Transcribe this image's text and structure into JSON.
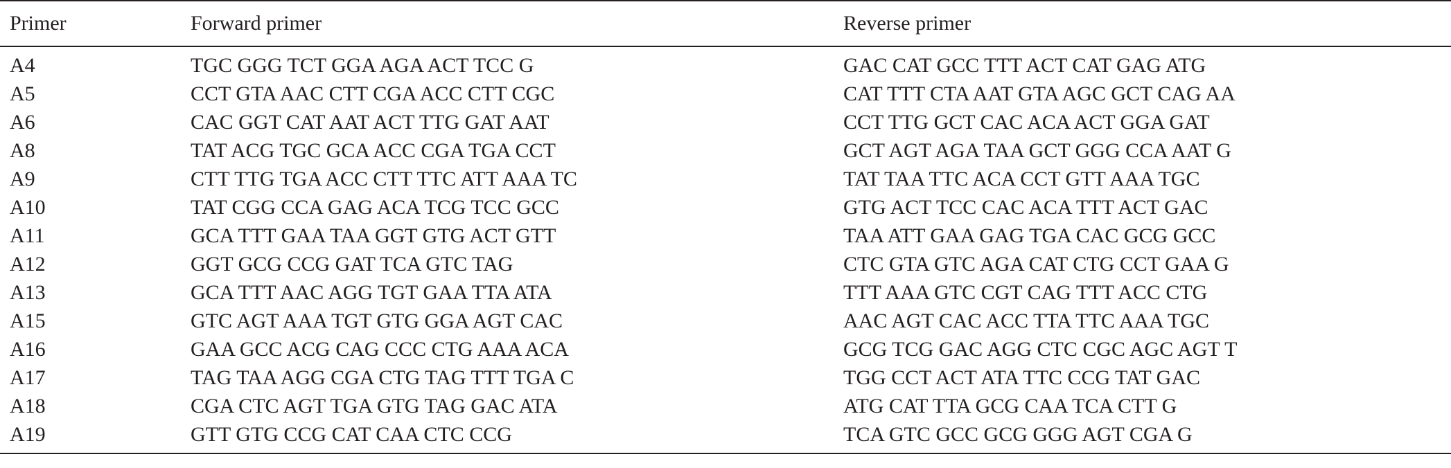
{
  "table": {
    "headers": [
      "Primer",
      "Forward primer",
      "Reverse primer"
    ],
    "rows": [
      [
        "A4",
        "TGC GGG TCT GGA AGA ACT TCC G",
        "GAC CAT GCC TTT ACT CAT GAG ATG"
      ],
      [
        "A5",
        "CCT GTA AAC CTT CGA ACC CTT CGC",
        "CAT TTT CTA AAT GTA AGC GCT CAG AA"
      ],
      [
        "A6",
        "CAC GGT CAT AAT ACT TTG GAT AAT",
        "CCT TTG GCT CAC ACA ACT GGA GAT"
      ],
      [
        "A8",
        "TAT ACG TGC GCA ACC CGA TGA CCT",
        "GCT AGT AGA TAA GCT GGG CCA AAT G"
      ],
      [
        "A9",
        "CTT TTG TGA ACC CTT TTC ATT AAA TC",
        "TAT TAA TTC ACA CCT GTT AAA TGC"
      ],
      [
        "A10",
        "TAT CGG CCA GAG ACA TCG TCC GCC",
        "GTG ACT TCC CAC ACA TTT ACT GAC"
      ],
      [
        "A11",
        "GCA TTT GAA TAA GGT GTG ACT GTT",
        "TAA ATT GAA GAG TGA CAC GCG GCC"
      ],
      [
        "A12",
        "GGT GCG CCG GAT TCA GTC TAG",
        "CTC GTA GTC AGA CAT CTG CCT GAA G"
      ],
      [
        "A13",
        "GCA TTT AAC AGG TGT GAA TTA ATA",
        "TTT AAA GTC CGT CAG TTT ACC CTG"
      ],
      [
        "A15",
        "GTC AGT AAA TGT GTG GGA AGT CAC",
        "AAC AGT CAC ACC TTA TTC AAA TGC"
      ],
      [
        "A16",
        "GAA GCC ACG CAG CCC CTG AAA ACA",
        "GCG TCG GAC AGG CTC CGC AGC AGT T"
      ],
      [
        "A17",
        "TAG TAA AGG CGA CTG TAG TTT TGA C",
        "TGG CCT ACT ATA TTC CCG TAT GAC"
      ],
      [
        "A18",
        "CGA CTC AGT TGA GTG TAG GAC ATA",
        "ATG CAT TTA GCG CAA TCA CTT G"
      ],
      [
        "A19",
        "GTT GTG CCG CAT CAA CTC CCG",
        "TCA GTC GCC GCG GGG AGT CGA G"
      ]
    ]
  }
}
